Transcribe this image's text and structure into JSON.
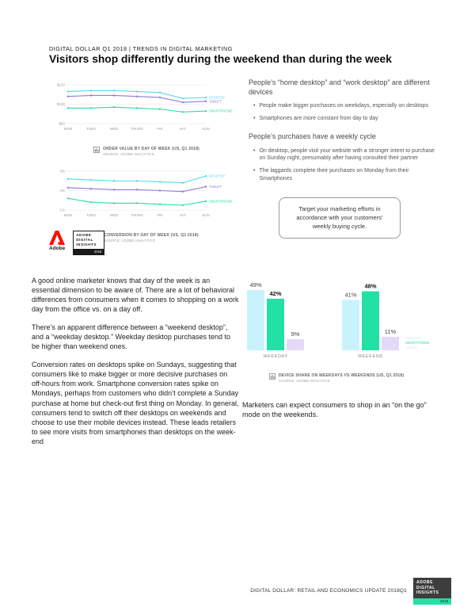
{
  "page": {
    "kicker": "DIGITAL DOLLAR Q1 2018 | TRENDS IN DIGITAL MARKETING",
    "headline": "Visitors shop differently during the weekend than during the week"
  },
  "colors": {
    "adobe_red": "#FA0F00",
    "desktop": "#56D9EC",
    "desktop_bar": "#C9F2FF",
    "smartphone": "#23E0A5",
    "tablet": "#8E7CD8",
    "tablet_bar": "#E2DAF8"
  },
  "masthead": {
    "adobe_wordmark": "Adobe",
    "badge_lines": [
      "ADOBE",
      "DIGITAL",
      "INSIGHTS"
    ],
    "badge_year": "2018"
  },
  "right_column": {
    "heading1": "People’s “home desktop” and “work desktop” are different devices",
    "bullets1": [
      "People make bigger purchases on weekdays, especially on desktops",
      "Smartphones are more constant from day to day"
    ],
    "heading2": "People’s purchases have a weekly cycle",
    "bullets2": [
      "On desktop, people visit your website with a stronger intent to purchase on Sunday night, presumably after having consulted their partner",
      "The laggards complete their purchases on Monday from their Smartphones"
    ],
    "callout": "Target your marketing efforts in accordance with your customers’ weekly buying cycle."
  },
  "body_text": {
    "paragraphs": [
      "A good online marketer knows that day of the week is an essential dimension to be aware of. There are a lot of behavioral differences from consumers when it comes to shopping on a work day from the office vs. on a day off.",
      "There’s an apparent difference between a “weekend desktop”, and a “weekday desktop.” Weekday desktop purchases tend to be higher than weekend ones.",
      "Conversion rates on desktops spike on Sundays, suggesting that consumers like to make bigger or more decisive purchases on off-hours from work. Smartphone conversion rates spike on Mondays, perhaps from customers who didn’t complete a Sunday purchase at home but check-out first thing on Monday. In general, consumers tend to switch off their desktops on weekends and choose to use their mobile devices instead. These leads retailers to see more visits from smartphones than desktops on the week-end"
    ]
  },
  "notes": {
    "bar_note": "Marketers can expect consumers to shop in an “on the go” mode on the weekends."
  },
  "footer": {
    "text": "DIGITAL DOLLAR: RETAIL AND ECONOMICS UPDATE  2018Q1"
  },
  "chart_data": [
    {
      "type": "line",
      "title": "ORDER VALUE BY DAY OF WEEK (US, Q1 2018)",
      "source": "SOURCE: ADOBE ANALYTICS",
      "x": [
        "MON",
        "TUES",
        "WED",
        "THURS",
        "FRI",
        "SAT",
        "SUN"
      ],
      "ylim": [
        80,
        120
      ],
      "yticks": [
        {
          "v": 120,
          "label": "$120"
        },
        {
          "v": 100,
          "label": "$100"
        },
        {
          "v": 80,
          "label": "$80"
        }
      ],
      "legend_position": "right",
      "series": [
        {
          "name": "DESKTOP",
          "color": "#56D9EC",
          "values": [
            113,
            114,
            114,
            113,
            112,
            106,
            107
          ]
        },
        {
          "name": "TABLET",
          "color": "#8E7CD8",
          "values": [
            108,
            109,
            109,
            108,
            107,
            102,
            103
          ]
        },
        {
          "name": "SMARTPHONE",
          "color": "#23E0A5",
          "values": [
            96,
            96,
            97,
            96,
            95,
            92,
            93
          ]
        }
      ]
    },
    {
      "type": "line",
      "title": "CONVERSION BY DAY OF WEEK (US, Q1 2018)",
      "source": "SOURCE: ADOBE ANALYTICS",
      "x": [
        "MON",
        "TUES",
        "WED",
        "THURS",
        "FRI",
        "SAT",
        "SUN"
      ],
      "ylim": [
        1,
        3
      ],
      "yticks": [
        {
          "v": 3,
          "label": "3%"
        },
        {
          "v": 2,
          "label": "2%"
        },
        {
          "v": 1,
          "label": "1%"
        }
      ],
      "legend_position": "right",
      "series": [
        {
          "name": "DESKTOP",
          "color": "#56D9EC",
          "values": [
            2.6,
            2.55,
            2.5,
            2.5,
            2.45,
            2.4,
            2.75
          ]
        },
        {
          "name": "TABLET",
          "color": "#8E7CD8",
          "values": [
            2.15,
            2.1,
            2.05,
            2.05,
            2.0,
            1.95,
            2.2
          ]
        },
        {
          "name": "SMARTPHONE",
          "color": "#23E0A5",
          "values": [
            1.6,
            1.4,
            1.35,
            1.35,
            1.3,
            1.25,
            1.45
          ]
        }
      ]
    },
    {
      "type": "bar",
      "title": "DEVICE SHARE ON WEEKDAYS VS WEEKENDS (US, Q1 2018)",
      "source": "SOURCE: ADOBE ANALYTICS",
      "categories": [
        "WEEKDAY",
        "WEEKEND"
      ],
      "ylim": [
        0,
        60
      ],
      "legend_position": "right",
      "series": [
        {
          "name": "DESKTOP",
          "color": "#C9F2FF",
          "bold": false,
          "values": [
            49,
            41
          ]
        },
        {
          "name": "SMARTPHONE",
          "color": "#23E0A5",
          "bold": true,
          "values": [
            42,
            48
          ]
        },
        {
          "name": "TABLET",
          "color": "#E2DAF8",
          "bold": false,
          "values": [
            9,
            11
          ]
        }
      ]
    }
  ]
}
